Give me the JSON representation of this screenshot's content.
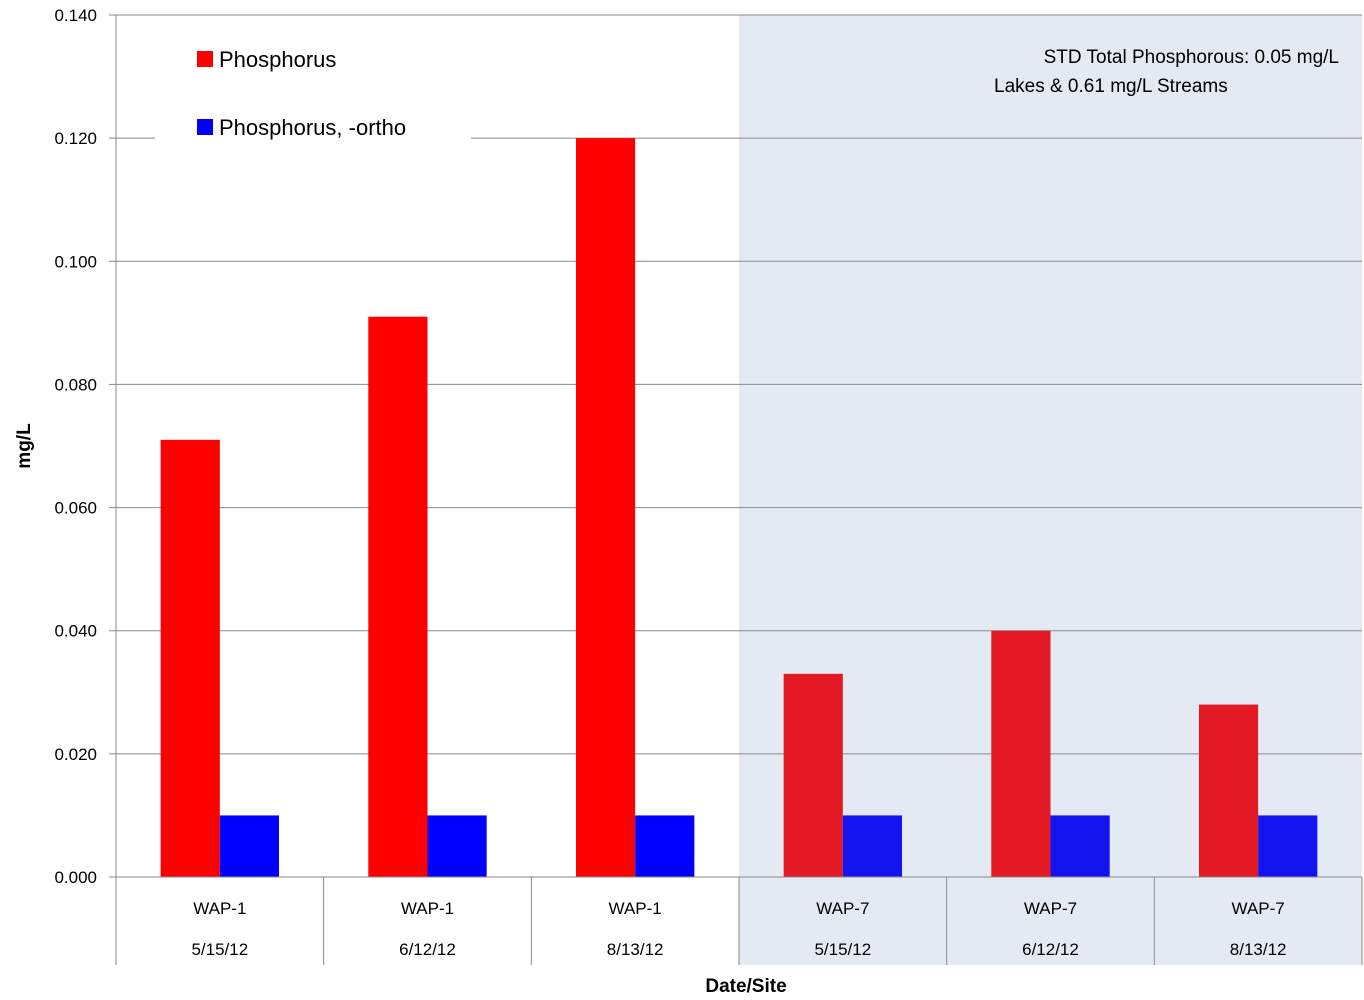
{
  "chart_data": {
    "type": "bar",
    "title": "",
    "xlabel": "Date/Site",
    "ylabel": "mg/L",
    "ylim": [
      0,
      0.14
    ],
    "y_ticks": [
      "0.000",
      "0.020",
      "0.040",
      "0.060",
      "0.080",
      "0.100",
      "0.120",
      "0.140"
    ],
    "grid": true,
    "legend_position": "top-left",
    "categories": [
      {
        "site": "WAP-1",
        "date": "5/15/12"
      },
      {
        "site": "WAP-1",
        "date": "6/12/12"
      },
      {
        "site": "WAP-1",
        "date": "8/13/12"
      },
      {
        "site": "WAP-7",
        "date": "5/15/12"
      },
      {
        "site": "WAP-7",
        "date": "6/12/12"
      },
      {
        "site": "WAP-7",
        "date": "8/13/12"
      }
    ],
    "series": [
      {
        "name": "Phosphorus",
        "values": [
          0.071,
          0.091,
          0.12,
          0.033,
          0.04,
          0.028
        ],
        "color": "#ff0000",
        "shaded_color": "#e31a23"
      },
      {
        "name": "Phosphorus, -ortho",
        "values": [
          0.01,
          0.01,
          0.01,
          0.01,
          0.01,
          0.01
        ],
        "color": "#0000ff",
        "shaded_color": "#1414f0"
      }
    ],
    "shaded_region": {
      "start_category": 3,
      "end_category": 5,
      "color": "#e3eaf3"
    },
    "annotation": [
      "STD Total Phosphorous: 0.05 mg/L",
      "Lakes & 0.61 mg/L Streams"
    ]
  }
}
